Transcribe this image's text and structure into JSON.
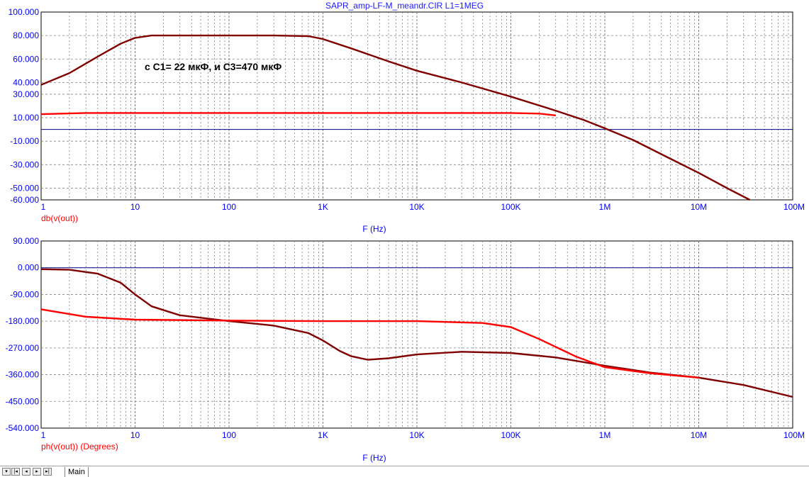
{
  "window": {
    "title": "SAPR_amp-LF-M_meandr.CIR L1=1MEG",
    "annotation": "с С1= 22 мкФ, и С3=470 мкФ"
  },
  "tabs": {
    "nav_icons": [
      "scroll-down-icon",
      "first-icon",
      "prev-icon",
      "next-icon",
      "last-icon"
    ],
    "active": "Main"
  },
  "colors": {
    "series_red": "#ff0000",
    "series_dark": "#800000",
    "axis_text": "#0000ff",
    "grid": "#808080"
  },
  "chart_data": [
    {
      "type": "line",
      "x_scale": "log",
      "xlim": [
        1,
        100000000
      ],
      "ylim": [
        -60,
        100
      ],
      "x_ticks": [
        1,
        10,
        100,
        1000,
        10000,
        100000,
        1000000,
        10000000,
        100000000
      ],
      "x_tick_labels": [
        "1",
        "10",
        "100",
        "1K",
        "10K",
        "100K",
        "1M",
        "10M",
        "100M"
      ],
      "y_ticks": [
        100,
        80,
        60,
        40,
        30,
        10,
        -10,
        -30,
        -50,
        -60
      ],
      "y_tick_labels": [
        "100.000",
        "80.000",
        "60.000",
        "40.000",
        "30.000",
        "10.000",
        "-10.000",
        "-30.000",
        "-50.000",
        "-60.000"
      ],
      "xlabel": "F (Hz)",
      "ylabel": "db(v(out))",
      "grid": true,
      "series": [
        {
          "color": "#800000",
          "x": [
            1,
            2,
            4,
            7,
            10,
            15,
            30,
            100,
            300,
            700,
            1000,
            2000,
            5000,
            10000,
            30000,
            100000,
            300000,
            600000,
            1000000,
            2000000,
            5000000,
            10000000,
            20000000,
            35000000
          ],
          "y": [
            38,
            48,
            62,
            73,
            78,
            80,
            80,
            80,
            80,
            79.5,
            77,
            69,
            58,
            50,
            40,
            28,
            16,
            8,
            1,
            -9,
            -25,
            -37,
            -50,
            -60
          ]
        },
        {
          "color": "#ff0000",
          "x": [
            1,
            3,
            10,
            100,
            1000,
            10000,
            100000,
            200000,
            300000
          ],
          "y": [
            13,
            14,
            14,
            14,
            14,
            14,
            14,
            13.5,
            12
          ]
        }
      ]
    },
    {
      "type": "line",
      "x_scale": "log",
      "xlim": [
        1,
        100000000
      ],
      "ylim": [
        -540,
        90
      ],
      "x_ticks": [
        1,
        10,
        100,
        1000,
        10000,
        100000,
        1000000,
        10000000,
        100000000
      ],
      "x_tick_labels": [
        "1",
        "10",
        "100",
        "1K",
        "10K",
        "100K",
        "1M",
        "10M",
        "100M"
      ],
      "y_ticks": [
        90,
        0,
        -90,
        -180,
        -270,
        -360,
        -450,
        -540
      ],
      "y_tick_labels": [
        "90.000",
        "0.000",
        "-90.000",
        "-180.000",
        "-270.000",
        "-360.000",
        "-450.000",
        "-540.000"
      ],
      "xlabel": "F (Hz)",
      "ylabel": "ph(v(out)) (Degrees)",
      "grid": true,
      "series": [
        {
          "color": "#800000",
          "x": [
            1,
            2,
            4,
            7,
            10,
            15,
            30,
            100,
            300,
            700,
            1000,
            1500,
            2000,
            3000,
            5000,
            10000,
            30000,
            100000,
            300000,
            1000000,
            3000000,
            10000000,
            30000000,
            100000000
          ],
          "y": [
            -5,
            -7,
            -20,
            -50,
            -90,
            -130,
            -160,
            -180,
            -195,
            -220,
            -245,
            -280,
            -298,
            -310,
            -305,
            -292,
            -283,
            -287,
            -302,
            -330,
            -353,
            -370,
            -395,
            -435
          ]
        },
        {
          "color": "#ff0000",
          "x": [
            1,
            3,
            10,
            100,
            1000,
            10000,
            50000,
            100000,
            200000,
            500000,
            1000000,
            3000000,
            10000000
          ],
          "y": [
            -140,
            -165,
            -175,
            -178,
            -180,
            -180,
            -186,
            -200,
            -240,
            -300,
            -335,
            -355,
            -370
          ]
        }
      ]
    }
  ]
}
